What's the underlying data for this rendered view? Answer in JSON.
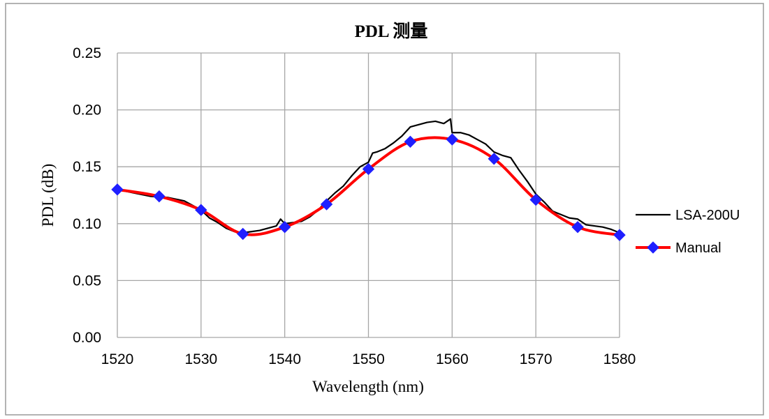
{
  "chart_data": {
    "type": "line",
    "title": "PDL 测量",
    "xlabel": "Wavelength (nm)",
    "ylabel": "PDL (dB)",
    "xlim": [
      1520,
      1580
    ],
    "ylim": [
      0,
      0.25
    ],
    "x_ticks": [
      "1520",
      "1530",
      "1540",
      "1550",
      "1560",
      "1570",
      "1580"
    ],
    "y_ticks": [
      "0.00",
      "0.05",
      "0.10",
      "0.15",
      "0.20",
      "0.25"
    ],
    "grid": true,
    "legend_position": "right",
    "series": [
      {
        "name": "LSA-200U",
        "color": "#000000",
        "marker": "none",
        "x": [
          1520,
          1522,
          1524,
          1526,
          1528,
          1530,
          1531,
          1532,
          1533,
          1534,
          1535,
          1536,
          1537,
          1538,
          1539,
          1539.5,
          1540,
          1541,
          1542,
          1543,
          1544,
          1545,
          1546,
          1547,
          1548,
          1549,
          1550,
          1550.5,
          1551,
          1552,
          1553,
          1554,
          1555,
          1556,
          1557,
          1558,
          1559,
          1559.8,
          1560,
          1561,
          1562,
          1563,
          1564,
          1565,
          1566,
          1567,
          1568,
          1569,
          1570,
          1571,
          1572,
          1573,
          1574,
          1575,
          1576,
          1577,
          1578,
          1579,
          1580
        ],
        "values": [
          0.13,
          0.127,
          0.124,
          0.123,
          0.12,
          0.112,
          0.105,
          0.101,
          0.096,
          0.093,
          0.092,
          0.093,
          0.094,
          0.096,
          0.098,
          0.104,
          0.1,
          0.101,
          0.102,
          0.106,
          0.112,
          0.12,
          0.127,
          0.133,
          0.142,
          0.15,
          0.154,
          0.162,
          0.163,
          0.166,
          0.171,
          0.177,
          0.185,
          0.187,
          0.189,
          0.19,
          0.188,
          0.192,
          0.18,
          0.18,
          0.178,
          0.174,
          0.17,
          0.163,
          0.16,
          0.158,
          0.147,
          0.137,
          0.126,
          0.119,
          0.111,
          0.108,
          0.105,
          0.104,
          0.099,
          0.098,
          0.097,
          0.095,
          0.092
        ]
      },
      {
        "name": "Manual",
        "color": "#ff0000",
        "marker": "diamond",
        "marker_color": "#1f1fff",
        "x": [
          1520,
          1525,
          1530,
          1535,
          1540,
          1545,
          1550,
          1555,
          1560,
          1565,
          1570,
          1575,
          1580
        ],
        "values": [
          0.13,
          0.124,
          0.112,
          0.091,
          0.097,
          0.117,
          0.148,
          0.172,
          0.174,
          0.157,
          0.121,
          0.097,
          0.09
        ]
      }
    ]
  }
}
